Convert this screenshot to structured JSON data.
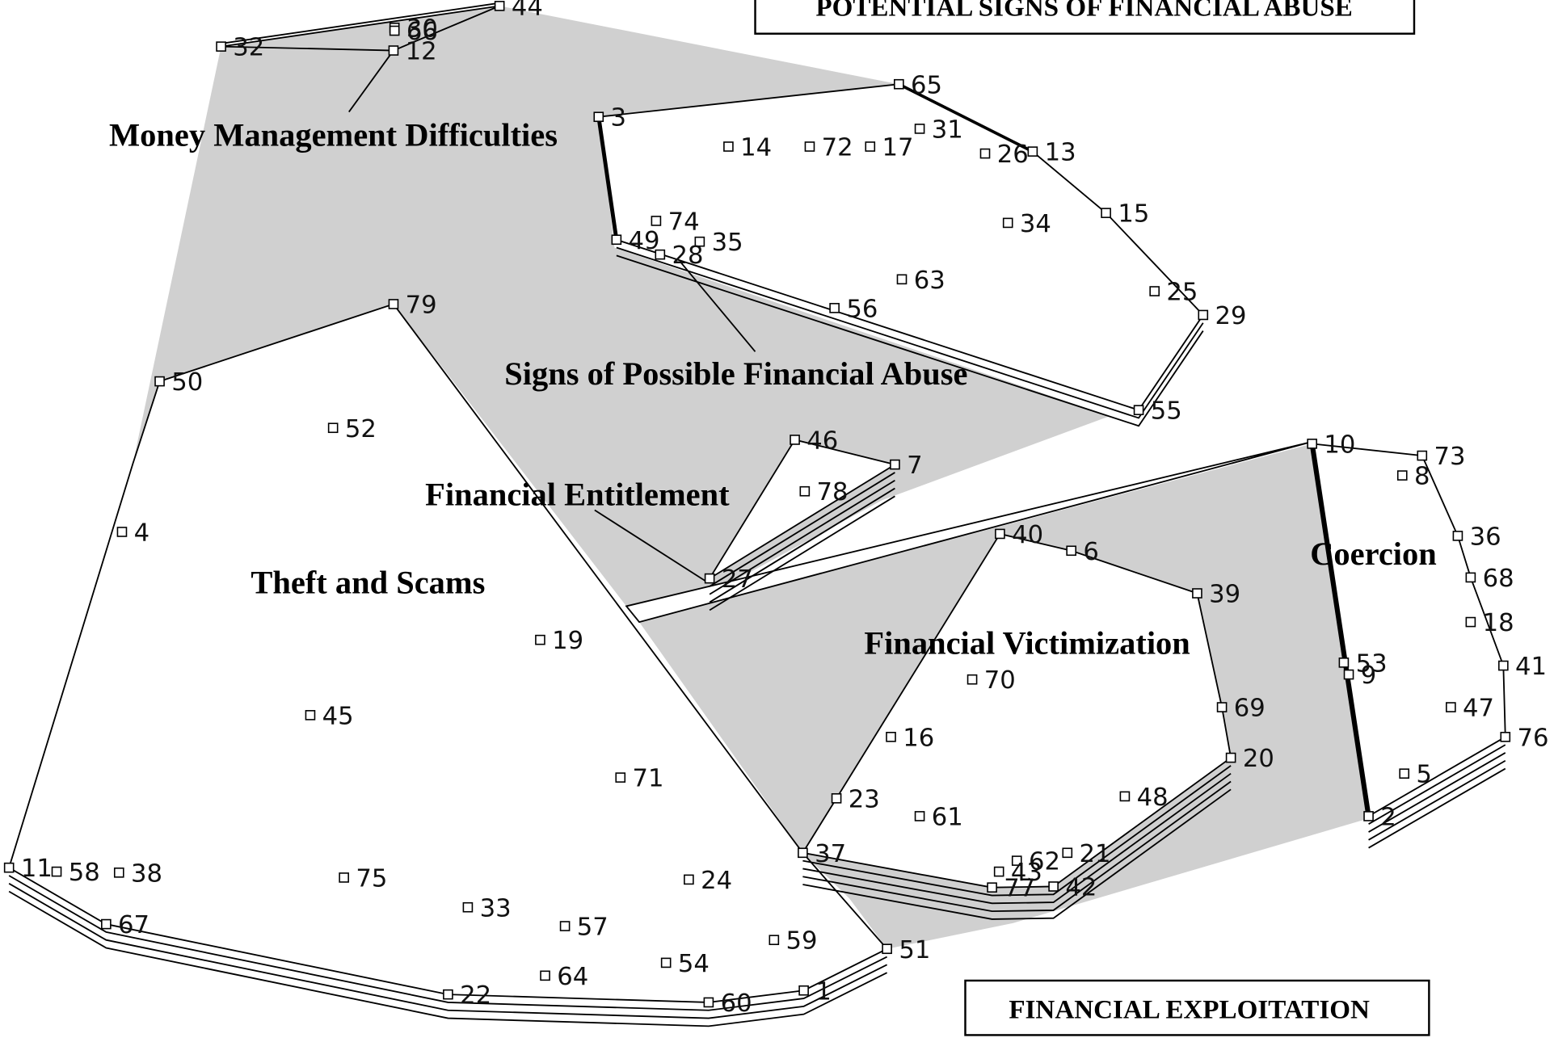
{
  "boxes": [
    "POTENTIAL  SIGNS OF FINANCIAL ABUSE",
    "FINANCIAL EXPLOITATION"
  ],
  "clusters": [
    "Money Management Difficulties",
    "Signs of Possible Financial Abuse",
    "Financial Entitlement",
    "Theft and Scams",
    "Financial Victimization",
    "Coercion"
  ],
  "points": [
    "44",
    "30",
    "66",
    "12",
    "32",
    "65",
    "3",
    "14",
    "72",
    "17",
    "31",
    "26",
    "13",
    "34",
    "15",
    "74",
    "35",
    "49",
    "28",
    "63",
    "56",
    "25",
    "29",
    "55",
    "79",
    "50",
    "52",
    "46",
    "7",
    "78",
    "4",
    "27",
    "19",
    "45",
    "71",
    "11",
    "58",
    "38",
    "75",
    "33",
    "24",
    "67",
    "57",
    "59",
    "54",
    "64",
    "22",
    "60",
    "1",
    "51",
    "37",
    "23",
    "16",
    "70",
    "61",
    "40",
    "6",
    "39",
    "69",
    "20",
    "48",
    "62",
    "21",
    "43",
    "77",
    "42",
    "10",
    "73",
    "8",
    "36",
    "68",
    "18",
    "41",
    "53",
    "9",
    "47",
    "76",
    "5",
    "2"
  ]
}
